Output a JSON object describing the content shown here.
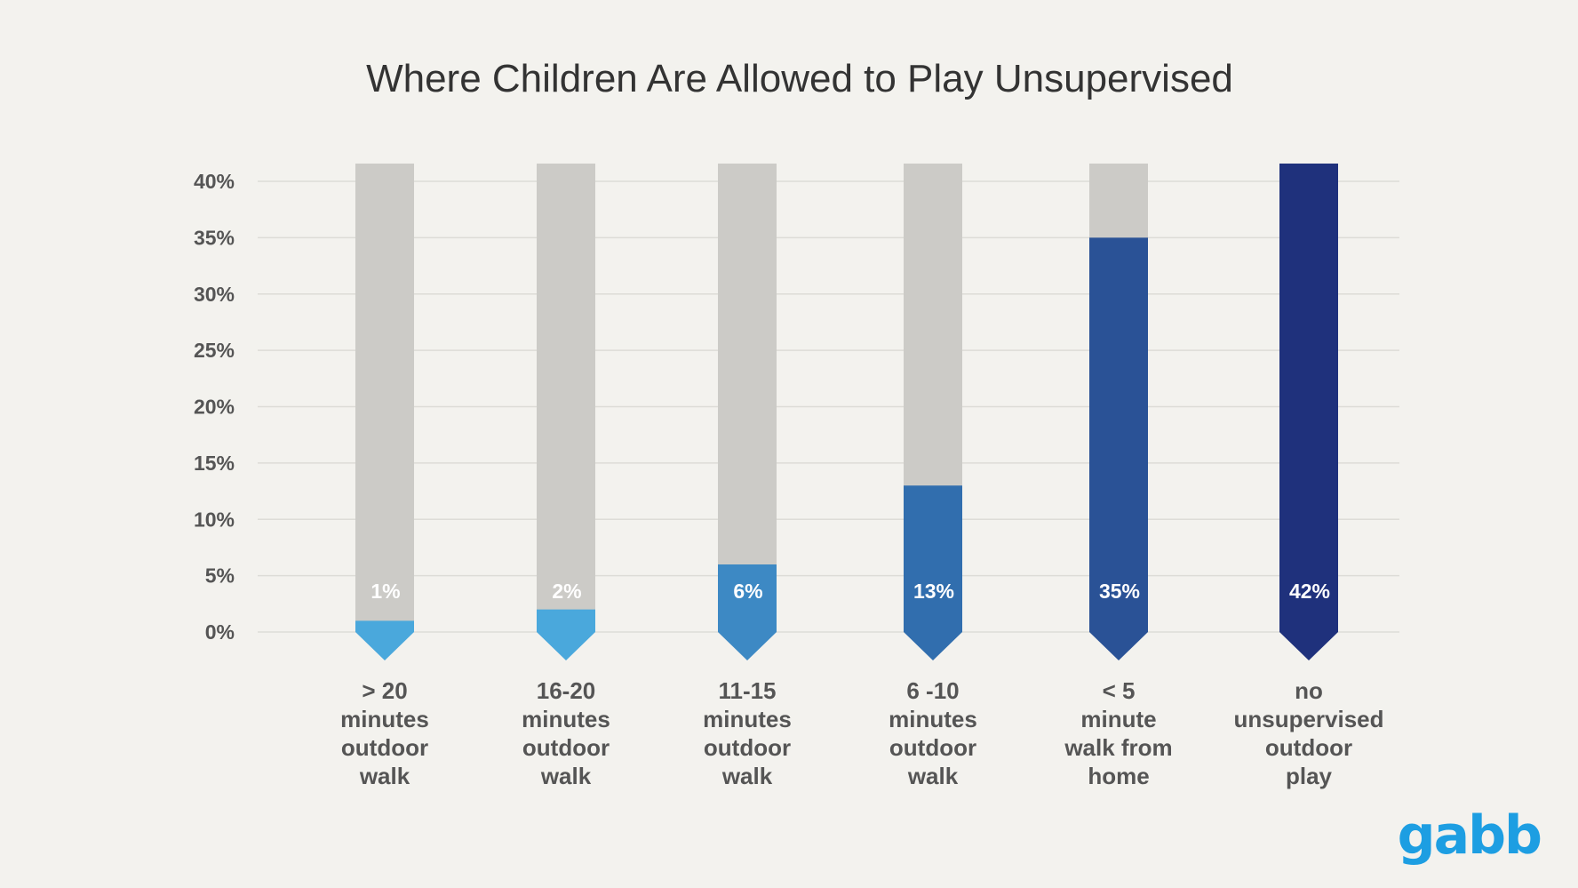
{
  "chart_data": {
    "type": "bar",
    "title": "Where Children Are Allowed to Play Unsupervised",
    "xlabel": "",
    "ylabel": "",
    "ylim": [
      0,
      40
    ],
    "yticks": [
      "0%",
      "5%",
      "10%",
      "15%",
      "20%",
      "25%",
      "30%",
      "35%",
      "40%"
    ],
    "grid": true,
    "legend": "none",
    "categories": [
      "> 20 minutes outdoor walk",
      "16-20 minutes outdoor walk",
      "11-15 minutes outdoor walk",
      "6 -10 minutes outdoor walk",
      "< 5 minute walk from home",
      "no unsupervised outdoor play"
    ],
    "category_lines": [
      [
        "> 20",
        "minutes",
        "outdoor",
        "walk"
      ],
      [
        "16-20",
        "minutes",
        "outdoor",
        "walk"
      ],
      [
        "11-15",
        "minutes",
        "outdoor",
        "walk"
      ],
      [
        "6 -10",
        "minutes",
        "outdoor",
        "walk"
      ],
      [
        "< 5",
        "minute",
        "walk from",
        "home"
      ],
      [
        "no",
        "unsupervised",
        "outdoor",
        "play"
      ]
    ],
    "values": [
      1,
      2,
      6,
      13,
      35,
      42
    ],
    "value_labels": [
      "1%",
      "2%",
      "6%",
      "13%",
      "35%",
      "42%"
    ],
    "colors": [
      "#4aa8dc",
      "#4aa8dc",
      "#3d89c4",
      "#316eae",
      "#2a5296",
      "#1f317c"
    ],
    "track_color": "#cccbc7",
    "grid_color": "#dddcd7"
  },
  "brand": {
    "logo_text": "gabb",
    "logo_color": "#1d9ee2"
  }
}
